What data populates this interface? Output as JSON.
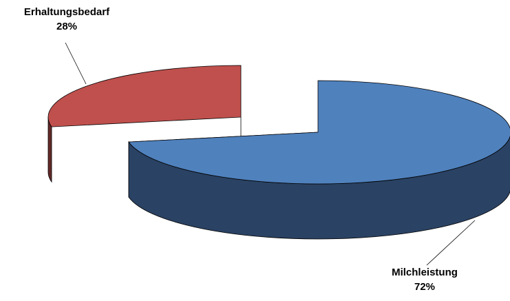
{
  "chart_data": {
    "type": "pie",
    "style": "3d-exploded",
    "categories": [
      "Milchleistung",
      "Erhaltungsbedarf"
    ],
    "values": [
      72,
      28
    ],
    "value_labels": [
      "72%",
      "28%"
    ],
    "colors": {
      "Milchleistung": {
        "top": "#4f81bd",
        "side": "#2a4263"
      },
      "Erhaltungsbedarf": {
        "top": "#c0504d",
        "side": "#632929"
      }
    },
    "title": "",
    "legend": "none"
  }
}
